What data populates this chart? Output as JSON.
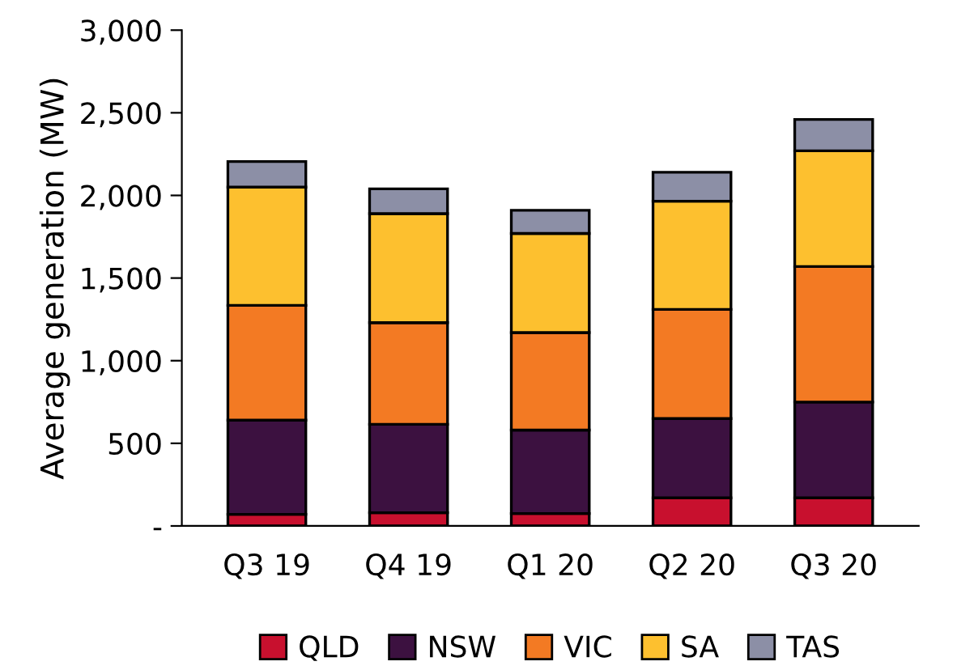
{
  "chart_data": {
    "type": "bar",
    "stacked": true,
    "ylabel": "Average generation (MW)",
    "categories": [
      "Q3 19",
      "Q4 19",
      "Q1 20",
      "Q2 20",
      "Q3 20"
    ],
    "series": [
      {
        "name": "QLD",
        "color": "#c8102e",
        "values": [
          70,
          80,
          75,
          170,
          170
        ]
      },
      {
        "name": "NSW",
        "color": "#3c1140",
        "values": [
          570,
          535,
          505,
          480,
          580
        ]
      },
      {
        "name": "VIC",
        "color": "#f37a23",
        "values": [
          695,
          615,
          590,
          660,
          820
        ]
      },
      {
        "name": "SA",
        "color": "#fdc02f",
        "values": [
          715,
          660,
          600,
          655,
          700
        ]
      },
      {
        "name": "TAS",
        "color": "#8c8fa6",
        "values": [
          155,
          150,
          140,
          175,
          190
        ]
      }
    ],
    "ylim": [
      0,
      3000
    ],
    "yticks": [
      {
        "value": 0,
        "label": "-"
      },
      {
        "value": 500,
        "label": "500"
      },
      {
        "value": 1000,
        "label": "1,000"
      },
      {
        "value": 1500,
        "label": "1,500"
      },
      {
        "value": 2000,
        "label": "2,000"
      },
      {
        "value": 2500,
        "label": "2,500"
      },
      {
        "value": 3000,
        "label": "3,000"
      }
    ],
    "grid": false,
    "legend": "bottom"
  }
}
